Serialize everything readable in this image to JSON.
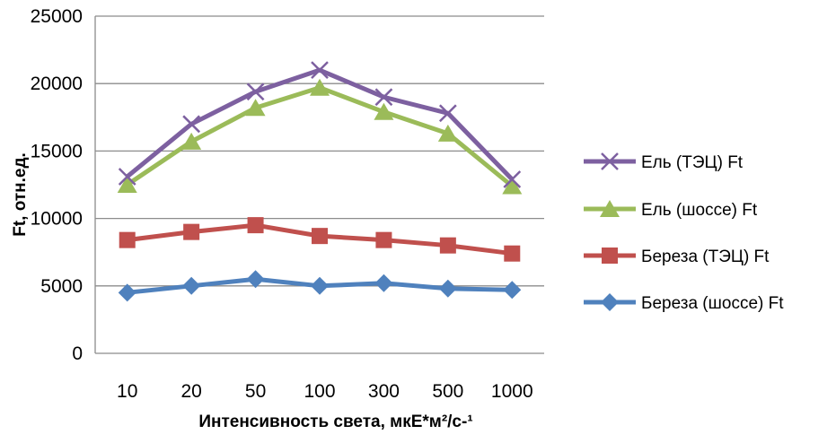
{
  "chart_data": {
    "type": "line",
    "categories": [
      "10",
      "20",
      "50",
      "100",
      "300",
      "500",
      "1000"
    ],
    "series": [
      {
        "name": "Ель (ТЭЦ) Ft",
        "marker": "x",
        "color": "#7D60A0",
        "values": [
          13100,
          17000,
          19400,
          21000,
          19000,
          17800,
          12900
        ]
      },
      {
        "name": "Ель (шоссе) Ft",
        "marker": "triangle",
        "color": "#9BBB59",
        "values": [
          12500,
          15700,
          18200,
          19700,
          17900,
          16300,
          12400
        ]
      },
      {
        "name": "Береза (ТЭЦ) Ft",
        "marker": "square",
        "color": "#C0504D",
        "values": [
          8400,
          9000,
          9500,
          8700,
          8400,
          8000,
          7400
        ]
      },
      {
        "name": "Береза (шоссе) Ft",
        "marker": "diamond",
        "color": "#4F81BD",
        "values": [
          4500,
          5000,
          5500,
          5000,
          5200,
          4800,
          4700
        ]
      }
    ],
    "y_ticks": [
      "0",
      "5000",
      "10000",
      "15000",
      "20000",
      "25000"
    ],
    "ylim": [
      0,
      25000
    ],
    "xlabel": "Интенсивность  света, мкЕ*м²/с-¹",
    "ylabel": "Ft, отн.ед.",
    "grid": true,
    "legend_position": "right"
  }
}
